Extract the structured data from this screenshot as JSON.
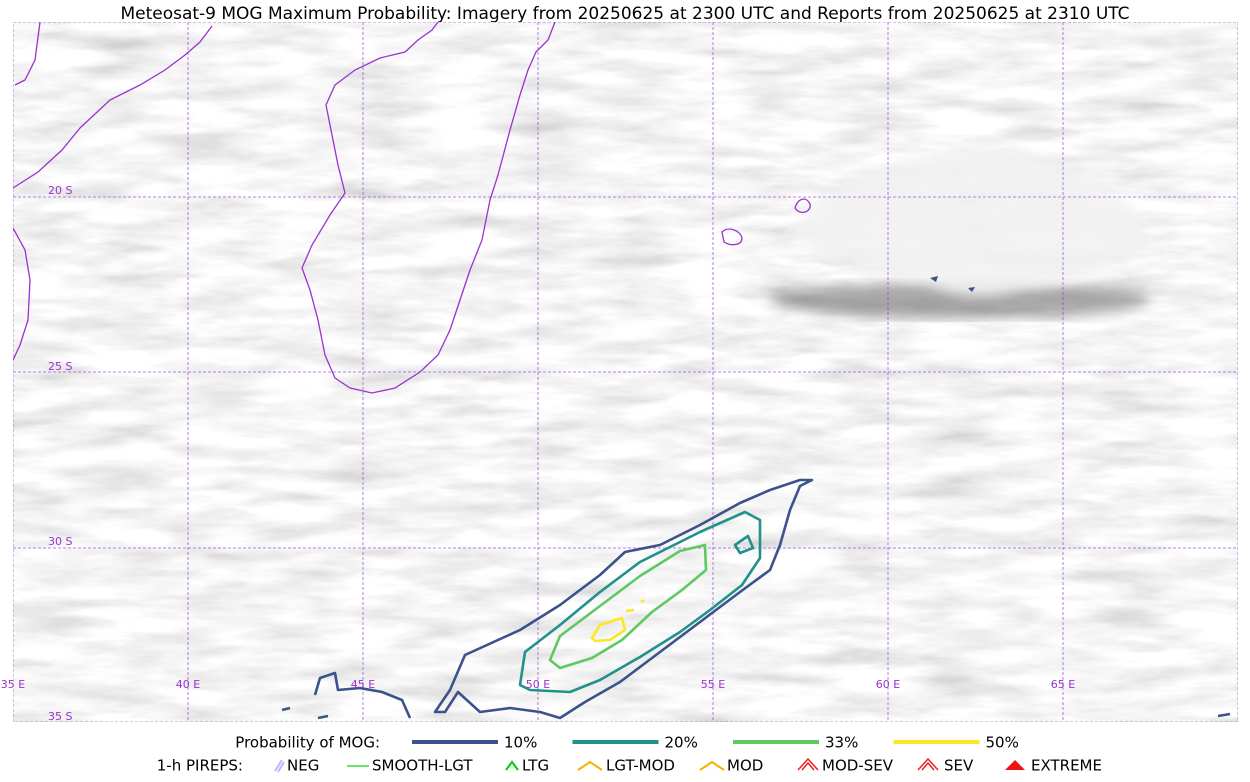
{
  "title": "Meteosat-9 MOG Maximum Probability: Imagery from 20250625 at 2300 UTC and Reports from 20250625 at 2310 UTC",
  "map": {
    "lat_labels": [
      "20 S",
      "25 S",
      "30 S",
      "35 S"
    ],
    "lon_labels": [
      "35 E",
      "40 E",
      "45 E",
      "50 E",
      "55 E",
      "60 E",
      "65 E"
    ]
  },
  "legend": {
    "probability": {
      "label": "Probability of MOG:",
      "items": [
        {
          "label": "10%",
          "color": "#3b528b"
        },
        {
          "label": "20%",
          "color": "#21918c"
        },
        {
          "label": "33%",
          "color": "#5ec962"
        },
        {
          "label": "50%",
          "color": "#fde725"
        }
      ]
    },
    "pireps": {
      "label": "1-h PIREPS:",
      "items": [
        {
          "label": "NEG",
          "color": "#b8b8ff"
        },
        {
          "label": "SMOOTH-LGT",
          "color": "#33dd33"
        },
        {
          "label": "LTG",
          "color": "#00cc00"
        },
        {
          "label": "LGT-MOD",
          "color": "#f0b400"
        },
        {
          "label": "MOD",
          "color": "#f0b400"
        },
        {
          "label": "MOD-SEV",
          "color": "#ee2222"
        },
        {
          "label": "SEV",
          "color": "#ee2222"
        },
        {
          "label": "EXTREME",
          "color": "#ee1111"
        }
      ]
    }
  }
}
